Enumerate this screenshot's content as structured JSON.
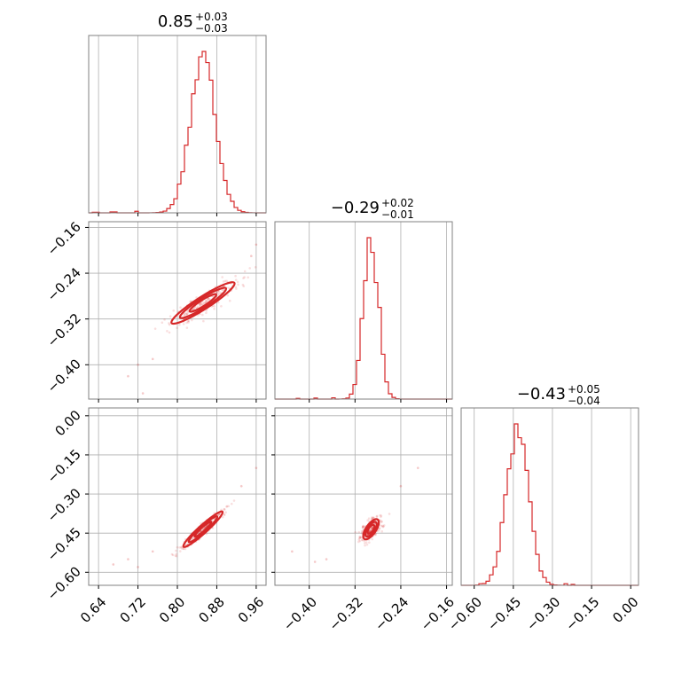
{
  "chart_data": {
    "type": "corner",
    "color": "#d62728",
    "grid": true,
    "parameters": [
      {
        "name": "p1",
        "range": [
          0.62,
          0.98
        ],
        "ticks": [
          "0.64",
          "0.72",
          "0.80",
          "0.88",
          "0.96"
        ],
        "tick_values": [
          0.64,
          0.72,
          0.8,
          0.88,
          0.96
        ],
        "title": {
          "median": "0.85",
          "plus": "+0.03",
          "minus": "−0.03"
        },
        "histogram": {
          "center": 0.852,
          "sigma": 0.026,
          "edge_bins": [
            [
              0.635,
              0.004
            ],
            [
              0.67,
              0.006
            ],
            [
              0.72,
              0.01
            ]
          ]
        }
      },
      {
        "name": "p2",
        "range": [
          -0.46,
          -0.15
        ],
        "ticks": [
          "−0.40",
          "−0.32",
          "−0.24",
          "−0.16"
        ],
        "tick_values": [
          -0.4,
          -0.32,
          -0.24,
          -0.16
        ],
        "title": {
          "median": "−0.29",
          "plus": "+0.02",
          "minus": "−0.01"
        },
        "histogram": {
          "center": -0.292,
          "sigma": 0.013,
          "edge_bins": [
            [
              -0.42,
              0.004
            ],
            [
              -0.39,
              0.006
            ],
            [
              -0.36,
              0.008
            ]
          ]
        }
      },
      {
        "name": "p3",
        "range": [
          -0.65,
          0.03
        ],
        "ticks": [
          "−0.60",
          "−0.45",
          "−0.30",
          "−0.15",
          "0.00"
        ],
        "tick_values": [
          -0.6,
          -0.45,
          -0.3,
          -0.15,
          0.0
        ],
        "title": {
          "median": "−0.43",
          "plus": "+0.05",
          "minus": "−0.04"
        },
        "histogram": {
          "center": -0.435,
          "sigma": 0.042,
          "edge_bins": [
            [
              -0.58,
              0.01
            ],
            [
              -0.25,
              0.01
            ],
            [
              -0.22,
              0.006
            ]
          ]
        }
      }
    ],
    "pairs": [
      {
        "x": 0,
        "y": 1,
        "center": [
          0.852,
          -0.292
        ],
        "slope": 0.55,
        "spread_along": 0.028,
        "spread_across": 0.009,
        "outliers": [
          [
            0.7,
            -0.42
          ],
          [
            0.72,
            -0.4
          ],
          [
            0.75,
            -0.39
          ],
          [
            0.73,
            -0.45
          ],
          [
            0.96,
            -0.19
          ],
          [
            0.95,
            -0.21
          ]
        ]
      },
      {
        "x": 0,
        "y": 2,
        "center": [
          0.852,
          -0.435
        ],
        "slope": 1.7,
        "spread_along": 0.03,
        "spread_across": 0.008,
        "outliers": [
          [
            0.67,
            -0.57
          ],
          [
            0.7,
            -0.55
          ],
          [
            0.72,
            -0.58
          ],
          [
            0.75,
            -0.52
          ],
          [
            0.96,
            -0.2
          ],
          [
            0.93,
            -0.27
          ]
        ]
      },
      {
        "x": 1,
        "y": 2,
        "center": [
          -0.292,
          -0.435
        ],
        "slope": 3.2,
        "spread_along": 0.015,
        "spread_across": 0.012,
        "outliers": [
          [
            -0.43,
            -0.52
          ],
          [
            -0.39,
            -0.56
          ],
          [
            -0.37,
            -0.55
          ],
          [
            -0.21,
            -0.2
          ],
          [
            -0.24,
            -0.27
          ]
        ]
      }
    ]
  }
}
